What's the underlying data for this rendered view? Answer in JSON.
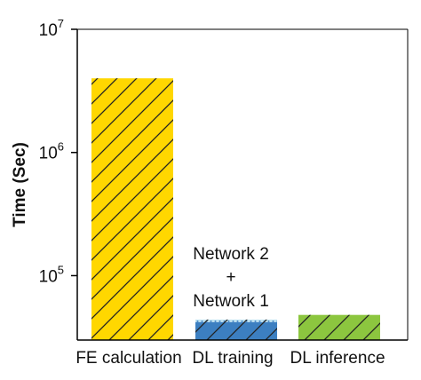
{
  "chart_data": {
    "type": "bar",
    "title": "",
    "xlabel": "",
    "ylabel": "Time (Sec)",
    "y_scale": "log",
    "ylim": [
      30000,
      10000000
    ],
    "y_ticks": [
      {
        "base": "10",
        "exp": "5",
        "value": 100000
      },
      {
        "base": "10",
        "exp": "6",
        "value": 1000000
      },
      {
        "base": "10",
        "exp": "7",
        "value": 10000000
      }
    ],
    "grid": false,
    "categories": [
      "FE calculation",
      "DL training",
      "DL inference"
    ],
    "bars": [
      {
        "category": "FE calculation",
        "value": 4000000,
        "color": "#FFD700",
        "pattern": "hatch"
      },
      {
        "category": "DL training",
        "value": 44000,
        "color": "#3C7FC1",
        "pattern": "hatch",
        "segments": [
          {
            "name": "Network 1",
            "value": 42000,
            "color": "#3C7FC1"
          },
          {
            "name": "Network 2",
            "value": 2000,
            "color": "#BFE3F2",
            "pattern": "dots"
          }
        ]
      },
      {
        "category": "DL inference",
        "value": 48000,
        "color": "#8CC63F",
        "pattern": "hatch"
      }
    ],
    "annotation": {
      "lines": [
        "Network 2",
        "+",
        "Network 1"
      ]
    }
  }
}
